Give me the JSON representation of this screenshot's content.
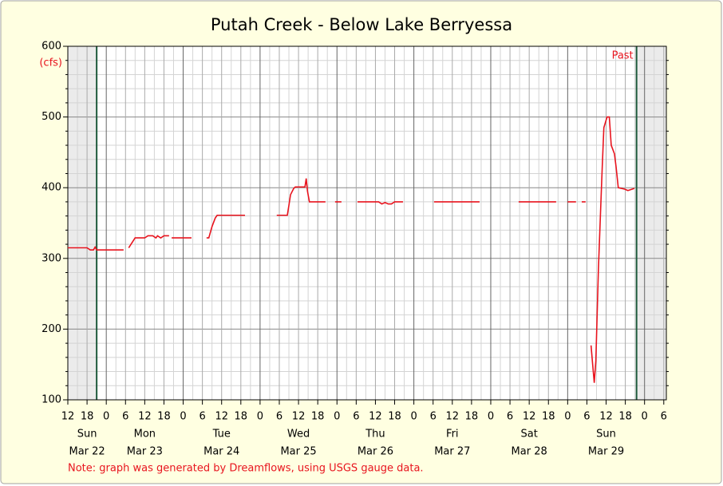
{
  "chart_data": {
    "type": "line",
    "title": "Putah Creek - Below Lake Berryessa",
    "y_unit": "(cfs)",
    "note": "Note: graph was generated by Dreamflows, using USGS gauge data.",
    "past_label": "Past",
    "past_range": [
      21,
      189.5
    ],
    "xlim": [
      12,
      198.8
    ],
    "ylim": [
      100,
      600
    ],
    "yticks": [
      100,
      200,
      300,
      400,
      500,
      600
    ],
    "xticks": [
      {
        "value": 12,
        "label": "12"
      },
      {
        "value": 18,
        "label": "18"
      },
      {
        "value": 24,
        "label": "0"
      },
      {
        "value": 30,
        "label": "6"
      },
      {
        "value": 36,
        "label": "12"
      },
      {
        "value": 42,
        "label": "18"
      },
      {
        "value": 48,
        "label": "0"
      },
      {
        "value": 54,
        "label": "6"
      },
      {
        "value": 60,
        "label": "12"
      },
      {
        "value": 66,
        "label": "18"
      },
      {
        "value": 72,
        "label": "0"
      },
      {
        "value": 78,
        "label": "6"
      },
      {
        "value": 84,
        "label": "12"
      },
      {
        "value": 90,
        "label": "18"
      },
      {
        "value": 96,
        "label": "0"
      },
      {
        "value": 102,
        "label": "6"
      },
      {
        "value": 108,
        "label": "12"
      },
      {
        "value": 114,
        "label": "18"
      },
      {
        "value": 120,
        "label": "0"
      },
      {
        "value": 126,
        "label": "6"
      },
      {
        "value": 132,
        "label": "12"
      },
      {
        "value": 138,
        "label": "18"
      },
      {
        "value": 144,
        "label": "0"
      },
      {
        "value": 150,
        "label": "6"
      },
      {
        "value": 156,
        "label": "12"
      },
      {
        "value": 162,
        "label": "18"
      },
      {
        "value": 168,
        "label": "0"
      },
      {
        "value": 174,
        "label": "6"
      },
      {
        "value": 180,
        "label": "12"
      },
      {
        "value": 186,
        "label": "18"
      },
      {
        "value": 192,
        "label": "0"
      },
      {
        "value": 198,
        "label": "6"
      }
    ],
    "day_labels": [
      {
        "x": 18,
        "day": "Sun",
        "date": "Mar 22"
      },
      {
        "x": 36,
        "day": "Mon",
        "date": "Mar 23"
      },
      {
        "x": 60,
        "day": "Tue",
        "date": "Mar 24"
      },
      {
        "x": 84,
        "day": "Wed",
        "date": "Mar 25"
      },
      {
        "x": 108,
        "day": "Thu",
        "date": "Mar 26"
      },
      {
        "x": 132,
        "day": "Fri",
        "date": "Mar 27"
      },
      {
        "x": 156,
        "day": "Sat",
        "date": "Mar 28"
      },
      {
        "x": 180,
        "day": "Sun",
        "date": "Mar 29"
      }
    ],
    "grid": true,
    "series": [
      {
        "name": "flow",
        "color": "#e8141e",
        "x": [
          12,
          14,
          16,
          18,
          19,
          20,
          20.5,
          21,
          23,
          26,
          29.4,
          30,
          31,
          33,
          36,
          37,
          38.5,
          39.5,
          40,
          41,
          42,
          43.6,
          44,
          44.4,
          47,
          50.6,
          52,
          55.3,
          56,
          57,
          58,
          58.6,
          62,
          67.3,
          70,
          77.2,
          80.5,
          81,
          81.5,
          82.5,
          83,
          86,
          86.4,
          86.8,
          87.4,
          92.4,
          94,
          95.4,
          97.4,
          100,
          102.4,
          109,
          110,
          111,
          112,
          113,
          114,
          116.6,
          120,
          126.3,
          140.5,
          145,
          152.7,
          164.4,
          166,
          168,
          170.6,
          171.5,
          172.4,
          173.6,
          174.5,
          175.3,
          175.8,
          176.3,
          176.8,
          177.6,
          178.3,
          178.8,
          179.3,
          180.3,
          181,
          181.6,
          182.6,
          183.1,
          183.8,
          185.8,
          186.8,
          188.8
        ],
        "values": [
          315,
          315,
          315,
          315,
          312,
          312,
          316,
          312,
          312,
          312,
          312,
          null,
          315,
          329,
          329,
          332,
          332,
          329,
          332,
          329,
          332,
          332,
          null,
          329,
          329,
          329,
          null,
          329,
          329,
          345,
          357,
          361,
          361,
          361,
          null,
          361,
          361,
          375,
          390,
          399,
          401,
          401,
          413,
          395,
          380,
          380,
          null,
          380,
          380,
          null,
          380,
          380,
          377,
          379,
          377,
          377,
          380,
          380,
          null,
          380,
          380,
          null,
          380,
          380,
          null,
          380,
          380,
          null,
          380,
          380,
          null,
          177,
          150,
          124,
          155,
          285,
          370,
          430,
          485,
          500,
          500,
          460,
          448,
          430,
          400,
          398,
          396,
          399
        ]
      }
    ]
  }
}
